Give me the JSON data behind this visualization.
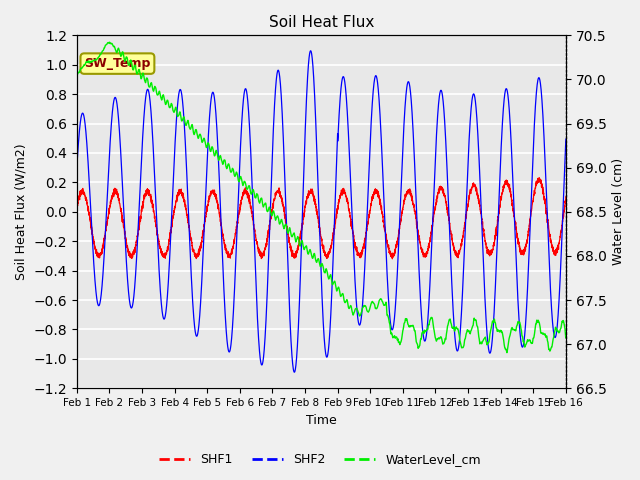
{
  "title": "Soil Heat Flux",
  "xlabel": "Time",
  "ylabel_left": "Soil Heat Flux (W/m2)",
  "ylabel_right": "Water Level (cm)",
  "ylim_left": [
    -1.2,
    1.2
  ],
  "ylim_right": [
    66.5,
    70.5
  ],
  "yticks_left": [
    -1.2,
    -1.0,
    -0.8,
    -0.6,
    -0.4,
    -0.2,
    0.0,
    0.2,
    0.4,
    0.6,
    0.8,
    1.0,
    1.2
  ],
  "yticks_right": [
    66.5,
    67.0,
    67.5,
    68.0,
    68.5,
    69.0,
    69.5,
    70.0,
    70.5
  ],
  "x_tick_labels": [
    "Feb 1",
    "Feb 2",
    "Feb 3",
    "Feb 4",
    "Feb 5",
    "Feb 6",
    "Feb 7",
    "Feb 8",
    "Feb 9",
    "Feb 10",
    "Feb 11",
    "Feb 12",
    "Feb 13",
    "Feb 14",
    "Feb 15",
    "Feb 16"
  ],
  "fig_bg_color": "#f0f0f0",
  "plot_bg_color": "#e8e8e8",
  "shf1_color": "#ff0000",
  "shf2_color": "#0000ff",
  "water_color": "#00ee00",
  "grid_color": "#ffffff",
  "annotation_text": "SW_Temp",
  "annotation_bg": "#ffff99",
  "annotation_fg": "#8b0000",
  "annotation_border": "#999900",
  "legend_labels": [
    "SHF1",
    "SHF2",
    "WaterLevel_cm"
  ]
}
